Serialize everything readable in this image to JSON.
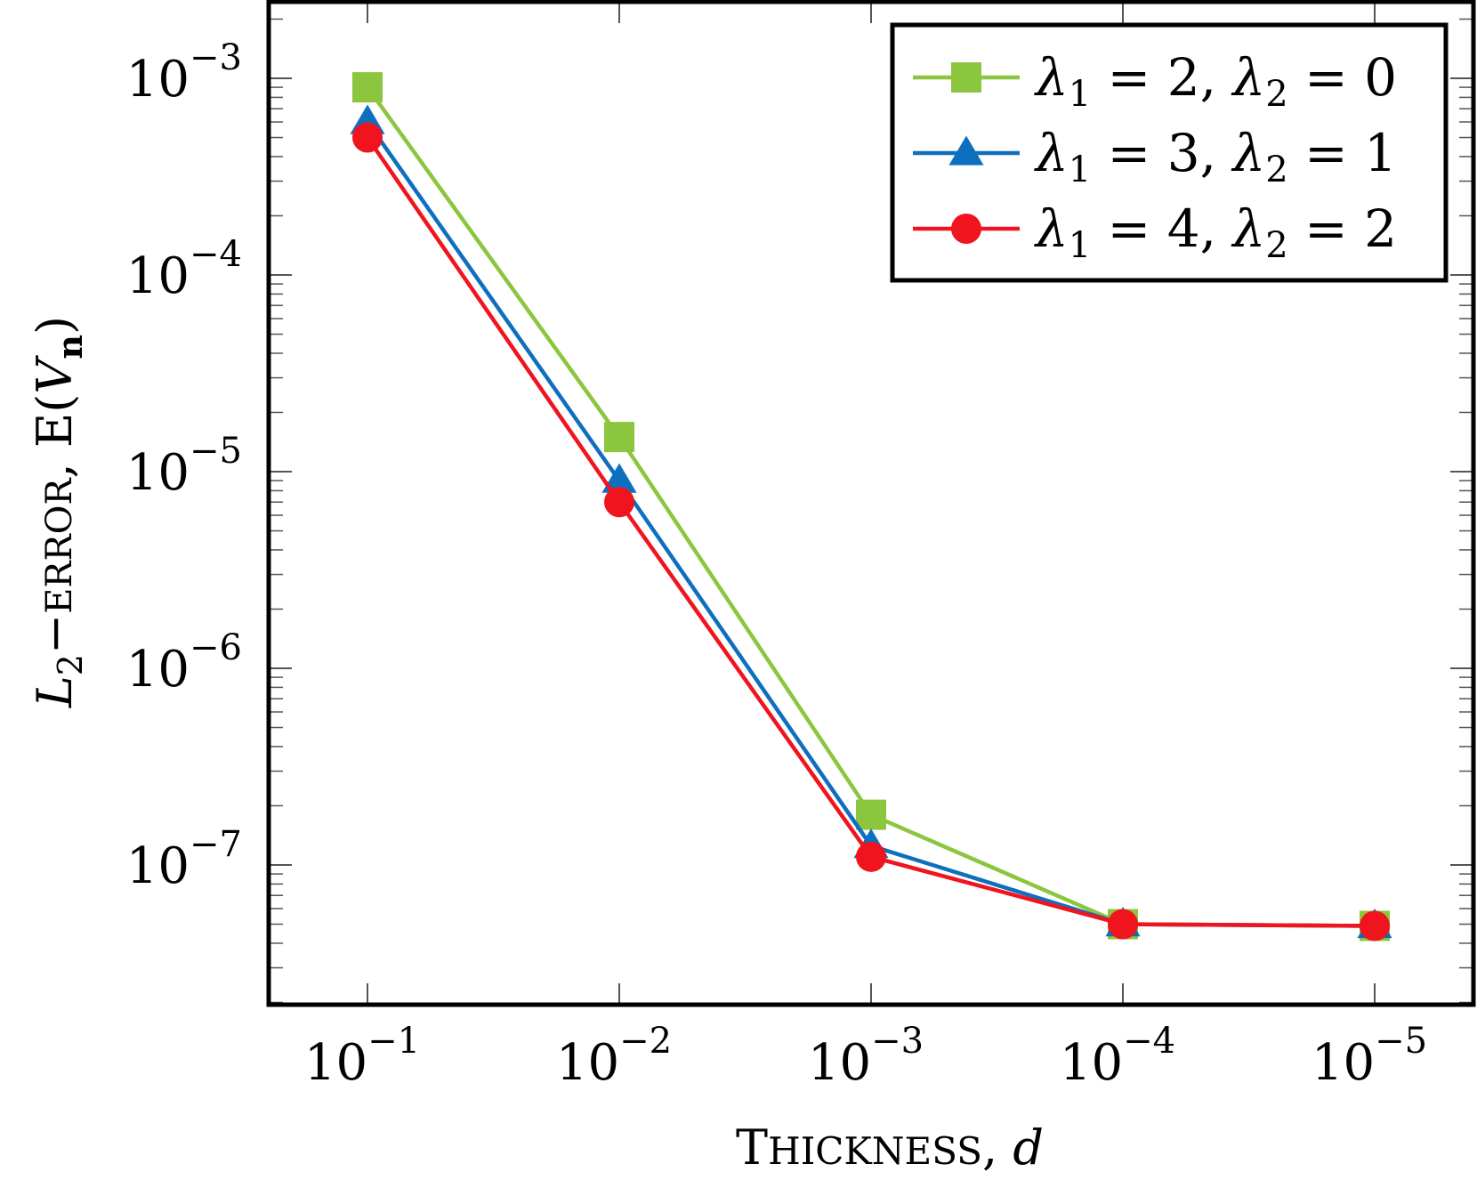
{
  "chart_data": {
    "type": "line",
    "xlabel": "Thickness, d",
    "ylabel": "L2−ERROR, E(Vn)",
    "x": [
      "1e-1",
      "1e-2",
      "1e-3",
      "1e-4",
      "1e-5"
    ],
    "xscale": "log",
    "x_direction": "decreasing",
    "yscale": "log",
    "ylim": [
      2.2e-08,
      0.0025
    ],
    "x_ticks": [
      {
        "base": "10",
        "exp": "−1"
      },
      {
        "base": "10",
        "exp": "−2"
      },
      {
        "base": "10",
        "exp": "−3"
      },
      {
        "base": "10",
        "exp": "−4"
      },
      {
        "base": "10",
        "exp": "−5"
      }
    ],
    "y_ticks": [
      {
        "value": 0.001,
        "base": "10",
        "exp": "−3"
      },
      {
        "value": 0.0001,
        "base": "10",
        "exp": "−4"
      },
      {
        "value": 1e-05,
        "base": "10",
        "exp": "−5"
      },
      {
        "value": 1e-06,
        "base": "10",
        "exp": "−6"
      },
      {
        "value": 1e-07,
        "base": "10",
        "exp": "−7"
      }
    ],
    "legend_position": "top-right",
    "grid": false,
    "series": [
      {
        "name": "λ1 = 2, λ2 = 0",
        "legend": {
          "a": "λ",
          "a_sub": "1",
          "a_val": " = 2, ",
          "b": "λ",
          "b_sub": "2",
          "b_val": " = 0"
        },
        "color": "#8cc63f",
        "marker": "square",
        "values": [
          0.0009,
          1.5e-05,
          1.8e-07,
          5e-08,
          4.9e-08
        ]
      },
      {
        "name": "λ1 = 3, λ2 = 1",
        "legend": {
          "a": "λ",
          "a_sub": "1",
          "a_val": " = 3, ",
          "b": "λ",
          "b_sub": "2",
          "b_val": " = 1"
        },
        "color": "#0f6fbf",
        "marker": "triangle",
        "values": [
          0.0006,
          9e-06,
          1.25e-07,
          5e-08,
          4.9e-08
        ]
      },
      {
        "name": "λ1 = 4, λ2 = 2",
        "legend": {
          "a": "λ",
          "a_sub": "1",
          "a_val": " = 4, ",
          "b": "λ",
          "b_sub": "2",
          "b_val": " = 2"
        },
        "color": "#f0141e",
        "marker": "circle",
        "values": [
          0.0005,
          7e-06,
          1.1e-07,
          5e-08,
          4.9e-08
        ]
      }
    ]
  }
}
